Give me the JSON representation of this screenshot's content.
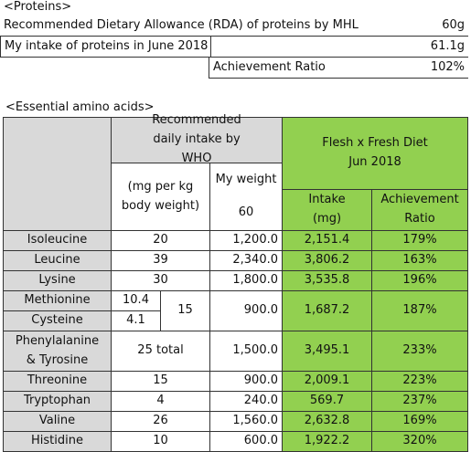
{
  "proteins": {
    "title": "<Proteins>",
    "rows": [
      {
        "label": "Recommended Dietary Allowance (RDA) of proteins by MHL",
        "value": "60g"
      },
      {
        "label": "My intake of proteins in June 2018",
        "value": "61.1g"
      },
      {
        "label": "Achievement Ratio",
        "value": "102%"
      }
    ]
  },
  "amino_acids": {
    "title": "<Essential amino acids>",
    "header": {
      "who": "Recommended daily intake by WHO",
      "who_unit": "(mg per kg body weight)",
      "my_weight_label": "My weight",
      "my_weight": "60",
      "diet": "Flesh x Fresh Diet",
      "period": "Jun 2018",
      "intake": "Intake",
      "intake_unit": "(mg)",
      "ratio": "Achievement Ratio"
    },
    "rows": [
      {
        "name": "Isoleucine",
        "who": "20",
        "weight": "1,200.0",
        "intake": "2,151.4",
        "ratio": "179%"
      },
      {
        "name": "Leucine",
        "who": "39",
        "weight": "2,340.0",
        "intake": "3,806.2",
        "ratio": "163%"
      },
      {
        "name": "Lysine",
        "who": "30",
        "weight": "1,800.0",
        "intake": "3,535.8",
        "ratio": "196%"
      },
      {
        "names": [
          "Methionine",
          "Cysteine"
        ],
        "who_parts": [
          "10.4",
          "4.1"
        ],
        "who": "15",
        "weight": "900.0",
        "intake": "1,687.2",
        "ratio": "187%"
      },
      {
        "name": "Phenylalanine & Tyrosine",
        "who": "25 total",
        "weight": "1,500.0",
        "intake": "3,495.1",
        "ratio": "233%"
      },
      {
        "name": "Threonine",
        "who": "15",
        "weight": "900.0",
        "intake": "2,009.1",
        "ratio": "223%"
      },
      {
        "name": "Tryptophan",
        "who": "4",
        "weight": "240.0",
        "intake": "569.7",
        "ratio": "237%"
      },
      {
        "name": "Valine",
        "who": "26",
        "weight": "1,560.0",
        "intake": "2,632.8",
        "ratio": "169%"
      },
      {
        "name": "Histidine",
        "who": "10",
        "weight": "600.0",
        "intake": "1,922.2",
        "ratio": "320%"
      }
    ]
  }
}
